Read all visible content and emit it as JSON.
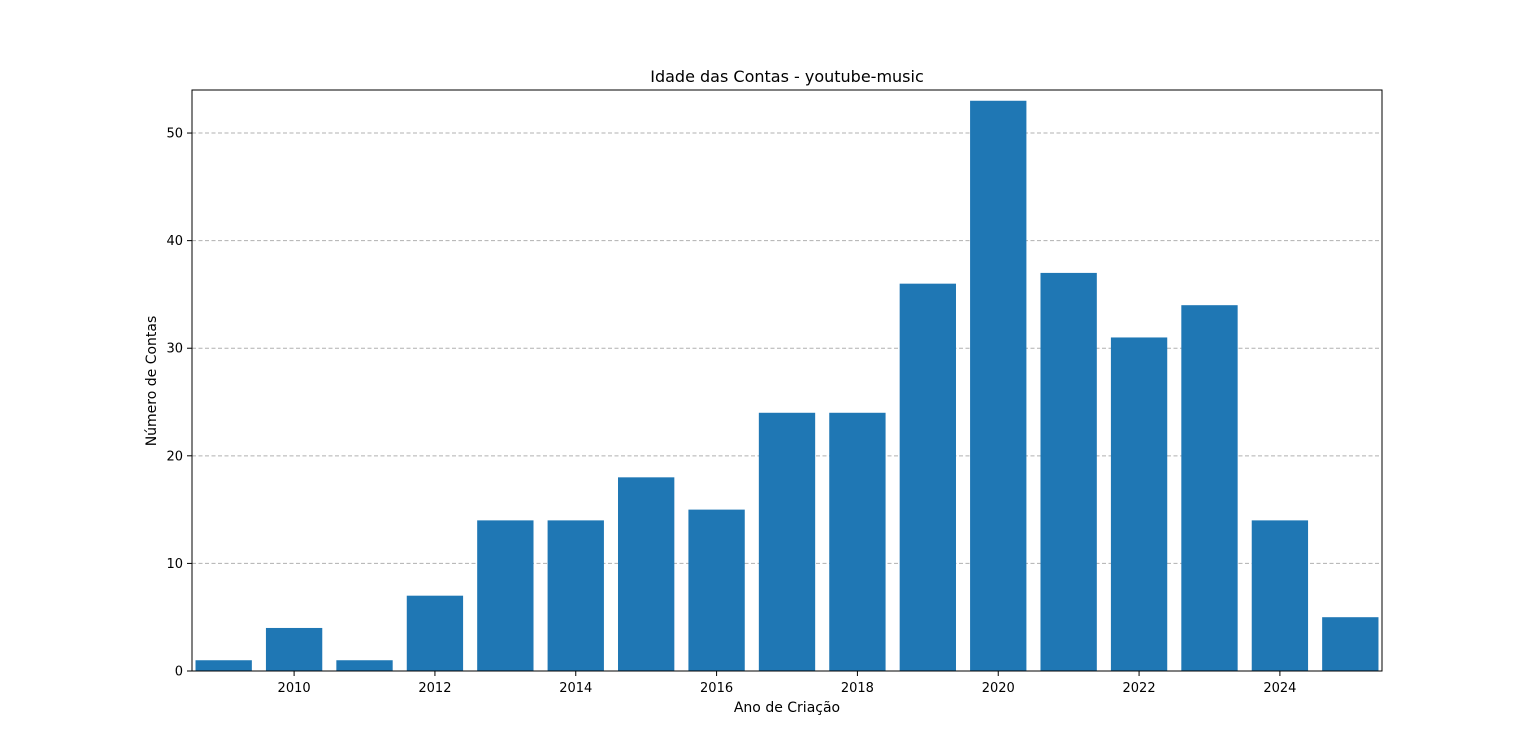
{
  "chart_data": {
    "type": "bar",
    "title": "Idade das Contas - youtube-music",
    "xlabel": "Ano de Criação",
    "ylabel": "Número de Contas",
    "x": [
      2009,
      2010,
      2011,
      2012,
      2013,
      2014,
      2015,
      2016,
      2017,
      2018,
      2019,
      2020,
      2021,
      2022,
      2023,
      2024,
      2025
    ],
    "values": [
      1,
      4,
      1,
      7,
      14,
      14,
      18,
      15,
      24,
      24,
      36,
      53,
      37,
      31,
      34,
      14,
      5
    ],
    "xticks": [
      "2010",
      "2012",
      "2014",
      "2016",
      "2018",
      "2020",
      "2022",
      "2024"
    ],
    "yticks": [
      "0",
      "10",
      "20",
      "30",
      "40",
      "50"
    ],
    "xlim": [
      2008.55,
      2025.45
    ],
    "ylim": [
      0,
      54
    ],
    "grid": "y-dashed",
    "bar_color": "#1f77b4",
    "grid_color": "#b0b0b0"
  }
}
